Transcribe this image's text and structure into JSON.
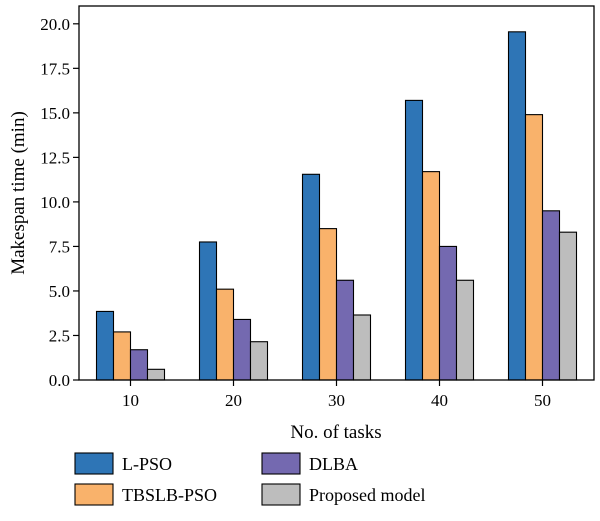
{
  "chart_data": {
    "type": "bar",
    "categories": [
      "10",
      "20",
      "30",
      "40",
      "50"
    ],
    "series": [
      {
        "name": "L-PSO",
        "color": "#2e75b6",
        "values": [
          3.85,
          7.75,
          11.55,
          15.7,
          19.55
        ]
      },
      {
        "name": "TBSLB-PSO",
        "color": "#f9b26b",
        "values": [
          2.7,
          5.1,
          8.5,
          11.7,
          14.9
        ]
      },
      {
        "name": "DLBA",
        "color": "#7469b0",
        "values": [
          1.7,
          3.4,
          5.6,
          7.5,
          9.5
        ]
      },
      {
        "name": "Proposed model",
        "color": "#bdbdbd",
        "values": [
          0.6,
          2.15,
          3.65,
          5.6,
          8.3
        ]
      }
    ],
    "title": "",
    "xlabel": "No. of tasks",
    "ylabel": "Makespan time (min)",
    "ylim": [
      0,
      21
    ],
    "yticks": [
      "0.0",
      "2.5",
      "5.0",
      "7.5",
      "10.0",
      "12.5",
      "15.0",
      "17.5",
      "20.0"
    ],
    "legend_position": "bottom",
    "grid": false
  }
}
